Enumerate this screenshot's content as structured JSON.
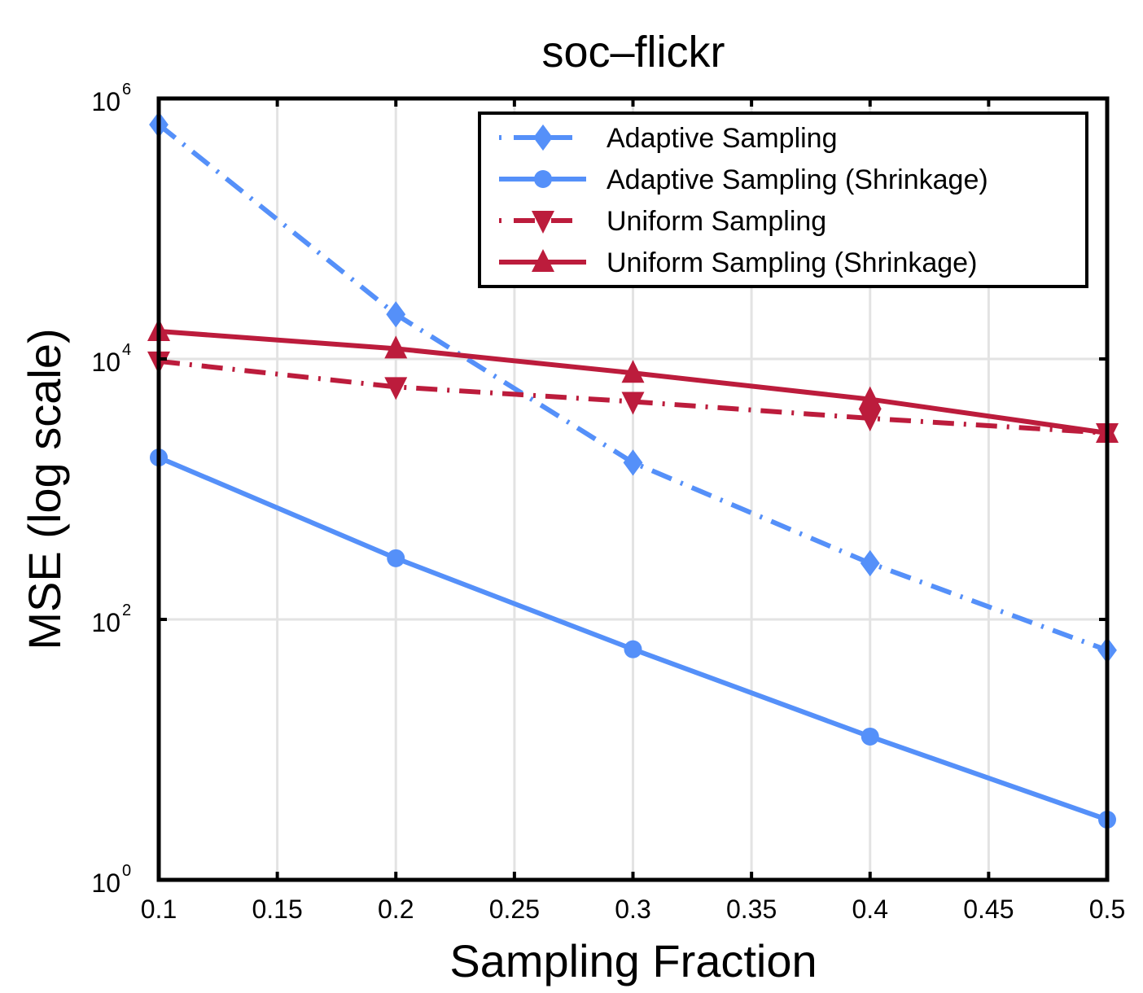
{
  "chart_data": {
    "type": "line",
    "title": "soc–flickr",
    "xlabel": "Sampling Fraction",
    "ylabel": "MSE (log scale)",
    "xlim": [
      0.1,
      0.5
    ],
    "ylim": [
      1,
      1000000
    ],
    "yscale": "log",
    "grid": true,
    "legend_position": "top-right",
    "x_ticks": [
      "0.1",
      "0.15",
      "0.2",
      "0.25",
      "0.3",
      "0.35",
      "0.4",
      "0.45",
      "0.5"
    ],
    "x_tick_values": [
      0.1,
      0.15,
      0.2,
      0.25,
      0.3,
      0.35,
      0.4,
      0.45,
      0.5
    ],
    "y_ticks": [
      {
        "base": "10",
        "exp": "0",
        "value": 1
      },
      {
        "base": "10",
        "exp": "2",
        "value": 100
      },
      {
        "base": "10",
        "exp": "4",
        "value": 10000
      },
      {
        "base": "10",
        "exp": "6",
        "value": 1000000
      }
    ],
    "x": [
      0.1,
      0.2,
      0.3,
      0.4,
      0.5
    ],
    "series": [
      {
        "name": "Adaptive Sampling",
        "color": "#5590F9",
        "line": "dashdot",
        "marker": "diamond",
        "values": [
          630000,
          22000,
          1600,
          270,
          58
        ]
      },
      {
        "name": "Adaptive Sampling (Shrinkage)",
        "color": "#5590F9",
        "line": "solid",
        "marker": "circle",
        "values": [
          1750,
          295,
          59,
          12.6,
          2.9
        ]
      },
      {
        "name": "Uniform Sampling",
        "color": "#BC1C3C",
        "line": "dashdot",
        "marker": "triangle-down",
        "values": [
          9600,
          6100,
          4700,
          3500,
          2700
        ]
      },
      {
        "name": "Uniform Sampling (Shrinkage)",
        "color": "#BC1C3C",
        "line": "solid",
        "marker": "triangle-up",
        "values": [
          16300,
          12000,
          7800,
          4900,
          2700
        ]
      }
    ]
  }
}
